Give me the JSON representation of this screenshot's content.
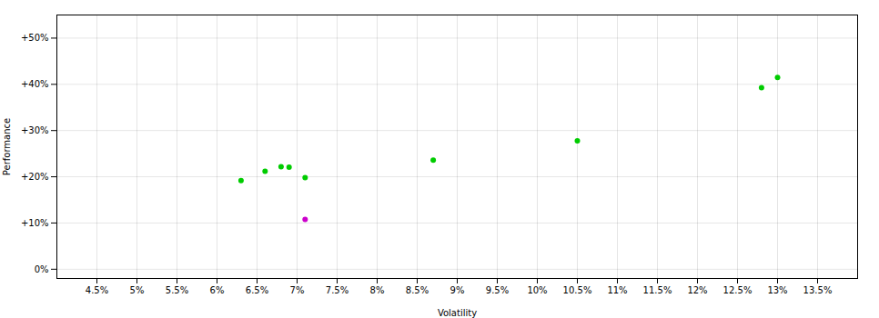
{
  "chart_data": {
    "type": "scatter",
    "xlabel": "Volatility",
    "ylabel": "Performance",
    "xlim": [
      0.04,
      0.14
    ],
    "ylim": [
      -0.02,
      0.55
    ],
    "xticks": [
      {
        "value": 0.045,
        "label": "4.5%"
      },
      {
        "value": 0.05,
        "label": "5%"
      },
      {
        "value": 0.055,
        "label": "5.5%"
      },
      {
        "value": 0.06,
        "label": "6%"
      },
      {
        "value": 0.065,
        "label": "6.5%"
      },
      {
        "value": 0.07,
        "label": "7%"
      },
      {
        "value": 0.075,
        "label": "7.5%"
      },
      {
        "value": 0.08,
        "label": "8%"
      },
      {
        "value": 0.085,
        "label": "8.5%"
      },
      {
        "value": 0.09,
        "label": "9%"
      },
      {
        "value": 0.095,
        "label": "9.5%"
      },
      {
        "value": 0.1,
        "label": "10%"
      },
      {
        "value": 0.105,
        "label": "10.5%"
      },
      {
        "value": 0.11,
        "label": "11%"
      },
      {
        "value": 0.115,
        "label": "11.5%"
      },
      {
        "value": 0.12,
        "label": "12%"
      },
      {
        "value": 0.125,
        "label": "12.5%"
      },
      {
        "value": 0.13,
        "label": "13%"
      },
      {
        "value": 0.135,
        "label": "13.5%"
      }
    ],
    "yticks": [
      {
        "value": 0.0,
        "label": "0%"
      },
      {
        "value": 0.1,
        "label": "+10%"
      },
      {
        "value": 0.2,
        "label": "+20%"
      },
      {
        "value": 0.3,
        "label": "+30%"
      },
      {
        "value": 0.4,
        "label": "+40%"
      },
      {
        "value": 0.5,
        "label": "+50%"
      }
    ],
    "grid": true,
    "series": [
      {
        "color": "#00cc00",
        "x": [
          0.063,
          0.066,
          0.068,
          0.069,
          0.071,
          0.087,
          0.105,
          0.128,
          0.13
        ],
        "values": [
          0.192,
          0.212,
          0.222,
          0.221,
          0.198,
          0.236,
          0.278,
          0.393,
          0.415
        ]
      },
      {
        "color": "#cc00cc",
        "x": [
          0.071
        ],
        "values": [
          0.108
        ]
      }
    ]
  }
}
